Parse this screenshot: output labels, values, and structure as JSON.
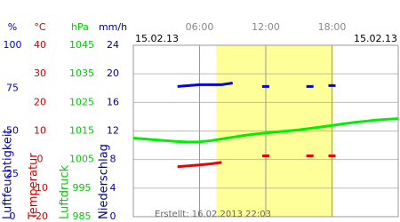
{
  "chart_data": {
    "type": "line",
    "date_left": "15.02.13",
    "date_right": "15.02.13",
    "footnote": "Erstellt: 16.02.2013 22:03",
    "daylight": [
      7.5,
      18.1
    ],
    "xlim": [
      0,
      24
    ],
    "xticks": [
      {
        "value": 6,
        "label": "06:00"
      },
      {
        "value": 12,
        "label": "12:00"
      },
      {
        "value": 18,
        "label": "18:00"
      }
    ],
    "x": [
      0,
      1,
      2,
      3,
      4,
      5,
      6,
      7,
      8,
      9,
      10,
      11,
      12,
      13,
      14,
      15,
      16,
      17,
      18,
      19,
      20,
      21,
      22,
      23,
      24
    ],
    "axes": [
      {
        "unit": "%",
        "title": "Luftfeuchtigkeit",
        "color": "#0000cc",
        "lim": [
          0,
          100
        ],
        "ticks": [
          0,
          25,
          50,
          75,
          100
        ]
      },
      {
        "unit": "°C",
        "title": "Temperatur",
        "color": "#cc0000",
        "lim": [
          -20,
          40
        ],
        "ticks": [
          -20,
          -10,
          0,
          10,
          20,
          30,
          40
        ]
      },
      {
        "unit": "hPa",
        "title": "Luftdruck",
        "color": "#00cc00",
        "lim": [
          985,
          1045
        ],
        "ticks": [
          985,
          995,
          1005,
          1015,
          1025,
          1035,
          1045
        ]
      },
      {
        "unit": "mm/h",
        "title": "Niederschlag",
        "color": "#000099",
        "lim": [
          0,
          24
        ],
        "ticks": [
          0,
          4,
          8,
          12,
          16,
          20,
          24
        ]
      }
    ],
    "series": [
      {
        "axis": 2,
        "color": "#00ee00",
        "width": 3,
        "values": [
          1012.5,
          1012.2,
          1011.9,
          1011.6,
          1011.3,
          1011.1,
          1011.2,
          1011.6,
          1012.2,
          1012.8,
          1013.4,
          1013.9,
          1014.3,
          1014.7,
          1015.0,
          1015.4,
          1015.9,
          1016.4,
          1016.9,
          1017.5,
          1018.0,
          1018.4,
          1018.8,
          1019.1,
          1019.3
        ]
      },
      {
        "axis": 1,
        "color": "#ee0000",
        "width": 3,
        "values": [
          null,
          null,
          null,
          null,
          -2.5,
          -2.2,
          -1.9,
          -1.5,
          -1.0,
          null,
          null,
          null,
          1.3,
          null,
          null,
          null,
          1.3,
          null,
          1.3,
          null,
          null,
          null,
          null,
          null,
          null
        ]
      },
      {
        "axis": 0,
        "color": "#0000ee",
        "width": 3,
        "values": [
          null,
          null,
          null,
          null,
          76,
          76.5,
          77,
          77,
          77,
          78,
          null,
          null,
          76,
          null,
          null,
          null,
          76,
          null,
          76.5,
          null,
          null,
          null,
          null,
          null,
          null
        ]
      }
    ]
  }
}
